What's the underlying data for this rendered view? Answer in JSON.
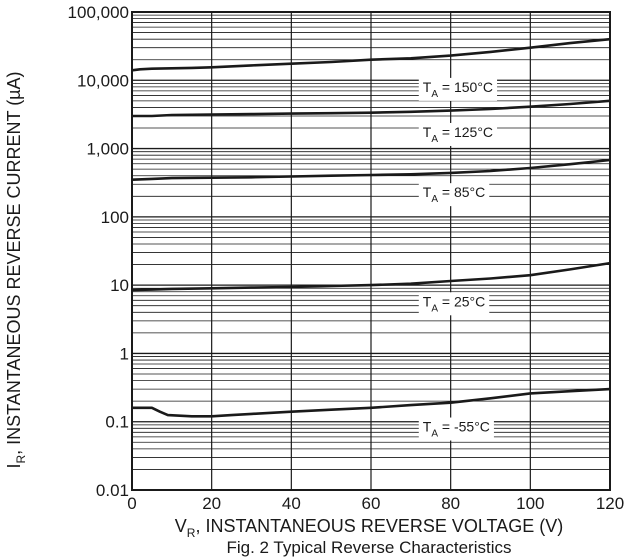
{
  "chart_data": {
    "type": "line",
    "caption": "Fig. 2 Typical Reverse Characteristics",
    "xlabel": {
      "main": "V",
      "sub": "R",
      "rest": ", INSTANTANEOUS REVERSE VOLTAGE (V)"
    },
    "ylabel": {
      "main": "I",
      "sub": "R",
      "rest": ", INSTANTANEOUS REVERSE CURRENT (µA)"
    },
    "xlim": [
      0,
      120
    ],
    "ylim": [
      0.01,
      100000
    ],
    "yscale": "log",
    "x_ticks": [
      "0",
      "20",
      "40",
      "60",
      "80",
      "100",
      "120"
    ],
    "y_ticks": [
      {
        "value": 100000,
        "label": "100,000"
      },
      {
        "value": 10000,
        "label": "10,000"
      },
      {
        "value": 1000,
        "label": "1,000"
      },
      {
        "value": 100,
        "label": "100"
      },
      {
        "value": 10,
        "label": "10"
      },
      {
        "value": 1,
        "label": "1"
      },
      {
        "value": 0.1,
        "label": "0.1"
      },
      {
        "value": 0.01,
        "label": "0.01"
      }
    ],
    "grid": true,
    "series": [
      {
        "label": {
          "main": "T",
          "sub": "A",
          "rest": " = 150°C"
        },
        "label_x": 73,
        "label_y": 8000,
        "x": [
          0,
          2,
          5,
          10,
          15,
          20,
          30,
          40,
          50,
          60,
          70,
          80,
          90,
          100,
          110,
          120
        ],
        "values": [
          14000,
          14500,
          14800,
          15000,
          15200,
          15500,
          16500,
          17500,
          18500,
          20000,
          21000,
          23000,
          26000,
          30000,
          35000,
          40000
        ]
      },
      {
        "label": {
          "main": "T",
          "sub": "A",
          "rest": " = 125°C"
        },
        "label_x": 73,
        "label_y": 1750,
        "x": [
          0,
          5,
          10,
          20,
          30,
          40,
          50,
          60,
          70,
          80,
          90,
          100,
          110,
          120
        ],
        "values": [
          3000,
          3000,
          3100,
          3150,
          3200,
          3250,
          3300,
          3350,
          3450,
          3600,
          3800,
          4100,
          4500,
          5000
        ]
      },
      {
        "label": {
          "main": "T",
          "sub": "A",
          "rest": " = 85°C"
        },
        "label_x": 73,
        "label_y": 230,
        "x": [
          0,
          5,
          10,
          20,
          30,
          40,
          50,
          60,
          70,
          80,
          90,
          100,
          110,
          120
        ],
        "values": [
          350,
          360,
          370,
          375,
          380,
          390,
          400,
          410,
          420,
          440,
          470,
          520,
          590,
          680
        ]
      },
      {
        "label": {
          "main": "T",
          "sub": "A",
          "rest": " = 25°C"
        },
        "label_x": 73,
        "label_y": 5.8,
        "x": [
          0,
          5,
          10,
          20,
          30,
          40,
          50,
          60,
          70,
          80,
          90,
          100,
          110,
          120
        ],
        "values": [
          8.5,
          8.6,
          8.8,
          9.0,
          9.2,
          9.4,
          9.7,
          10.0,
          10.5,
          11.5,
          12.5,
          14.0,
          17.0,
          21.0
        ]
      },
      {
        "label": {
          "main": "T",
          "sub": "A",
          "rest": " = -55°C"
        },
        "label_x": 73,
        "label_y": 0.085,
        "x": [
          0,
          5,
          7,
          9,
          15,
          20,
          25,
          30,
          40,
          50,
          60,
          70,
          80,
          90,
          100,
          110,
          120
        ],
        "values": [
          0.16,
          0.16,
          0.14,
          0.125,
          0.12,
          0.12,
          0.125,
          0.13,
          0.14,
          0.15,
          0.16,
          0.175,
          0.19,
          0.22,
          0.26,
          0.28,
          0.3
        ]
      }
    ]
  }
}
